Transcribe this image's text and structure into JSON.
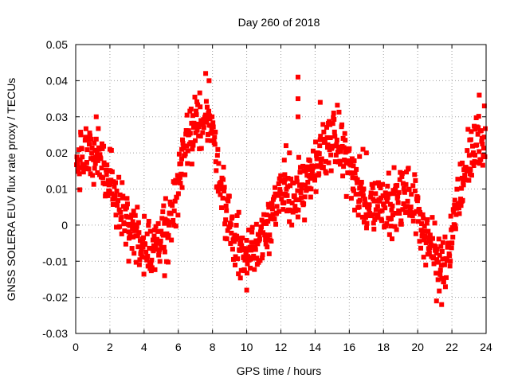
{
  "chart_data": {
    "type": "scatter",
    "title": "Day 260 of 2018",
    "xlabel": "GPS time / hours",
    "ylabel": "GNSS SOLERA EUV flux rate proxy / TECUs",
    "xlim": [
      0,
      24
    ],
    "ylim": [
      -0.03,
      0.05
    ],
    "x_ticks": [
      0,
      2,
      4,
      6,
      8,
      10,
      12,
      14,
      16,
      18,
      20,
      22,
      24
    ],
    "y_ticks": [
      -0.03,
      -0.02,
      -0.01,
      0,
      0.01,
      0.02,
      0.03,
      0.04,
      0.05
    ],
    "x_tick_labels": [
      "0",
      "2",
      "4",
      "6",
      "8",
      "10",
      "12",
      "14",
      "16",
      "18",
      "20",
      "22",
      "24"
    ],
    "y_tick_labels": [
      "-0.03",
      "-0.02",
      "-0.01",
      "0",
      "0.01",
      "0.02",
      "0.03",
      "0.04",
      "0.05"
    ],
    "grid": true,
    "grid_style": "dotted",
    "legend": "none",
    "marker": "square",
    "color": "#ff0000",
    "trend": {
      "x": [
        0,
        0.5,
        1,
        1.5,
        2,
        2.5,
        3,
        3.5,
        4,
        4.5,
        5,
        5.5,
        6,
        6.5,
        7,
        7.5,
        7.8,
        8.2,
        8.6,
        9,
        9.5,
        10,
        10.5,
        11,
        11.5,
        12,
        12.5,
        13,
        13.5,
        14,
        14.5,
        15,
        15.5,
        16,
        16.5,
        17,
        17.5,
        18,
        18.5,
        19,
        19.5,
        20,
        20.5,
        21,
        21.3,
        21.6,
        22,
        22.5,
        23,
        23.5,
        24
      ],
      "y": [
        0.015,
        0.019,
        0.021,
        0.018,
        0.012,
        0.006,
        0.001,
        -0.003,
        -0.005,
        -0.006,
        -0.004,
        0.002,
        0.012,
        0.021,
        0.027,
        0.031,
        0.029,
        0.02,
        0.009,
        0.0,
        -0.006,
        -0.009,
        -0.006,
        -0.001,
        0.004,
        0.007,
        0.008,
        0.009,
        0.01,
        0.015,
        0.022,
        0.024,
        0.022,
        0.017,
        0.008,
        0.005,
        0.006,
        0.007,
        0.006,
        0.007,
        0.008,
        0.004,
        -0.003,
        -0.008,
        -0.011,
        -0.01,
        -0.001,
        0.01,
        0.019,
        0.023,
        0.02
      ],
      "spread": 0.004
    },
    "outliers": [
      {
        "x": 13.0,
        "y": 0.041
      },
      {
        "x": 13.0,
        "y": 0.035
      },
      {
        "x": 13.0,
        "y": 0.03
      },
      {
        "x": 12.3,
        "y": 0.022
      },
      {
        "x": 12.5,
        "y": 0.02
      },
      {
        "x": 12.2,
        "y": 0.018
      },
      {
        "x": 14.3,
        "y": 0.034
      },
      {
        "x": 16.8,
        "y": 0.021
      },
      {
        "x": 17.0,
        "y": 0.02
      },
      {
        "x": 23.6,
        "y": 0.036
      },
      {
        "x": 23.9,
        "y": 0.033
      },
      {
        "x": 7.6,
        "y": 0.042
      },
      {
        "x": 7.8,
        "y": 0.04
      },
      {
        "x": 10.0,
        "y": -0.018
      },
      {
        "x": 21.4,
        "y": -0.022
      },
      {
        "x": 21.1,
        "y": -0.021
      },
      {
        "x": 3.1,
        "y": -0.01
      },
      {
        "x": 5.2,
        "y": -0.014
      },
      {
        "x": 0.3,
        "y": 0.025
      },
      {
        "x": 1.2,
        "y": 0.03
      },
      {
        "x": 2.0,
        "y": 0.021
      },
      {
        "x": 6.2,
        "y": 0.021
      },
      {
        "x": 16.6,
        "y": 0.019
      },
      {
        "x": 22.6,
        "y": 0.013
      }
    ]
  }
}
